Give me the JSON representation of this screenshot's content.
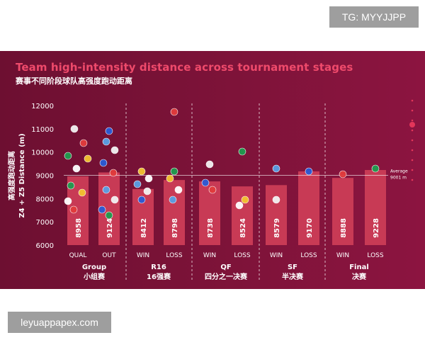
{
  "watermarks": {
    "top": "TG: MYYJJPP",
    "bottom": "leyuappapex.com"
  },
  "colors": {
    "background": "#7a1236",
    "bar": "#c83a55",
    "title": "#ef4a6b",
    "text": "#ffffff"
  },
  "chart_data": {
    "type": "bar",
    "title": "Team high-intensity distance across tournament stages",
    "subtitle": "赛事不同阶段球队高强度跑动距离",
    "ylabel": "Z4 + Z5 Distance (m)",
    "ylabel_cn": "高强度跑动距离",
    "ylim": [
      6000,
      12000
    ],
    "yticks": [
      "12000",
      "11000",
      "10000",
      "9000",
      "8000",
      "7000",
      "6000"
    ],
    "categories": [
      "QUAL",
      "OUT",
      "WIN",
      "LOSS",
      "WIN",
      "LOSS",
      "WIN",
      "LOSS",
      "WIN",
      "LOSS"
    ],
    "values": [
      8958,
      9124,
      8412,
      8798,
      8738,
      8524,
      8579,
      9170,
      8888,
      9228
    ],
    "value_labels": [
      "8958",
      "9124",
      "8412",
      "8798",
      "8738",
      "8524",
      "8579",
      "9170",
      "8888",
      "9228"
    ],
    "groups": [
      {
        "name": "Group",
        "name_cn": "小组赛"
      },
      {
        "name": "R16",
        "name_cn": "16强赛"
      },
      {
        "name": "QF",
        "name_cn": "四分之一决赛"
      },
      {
        "name": "SF",
        "name_cn": "半决赛"
      },
      {
        "name": "Final",
        "name_cn": "决赛"
      }
    ],
    "average": {
      "value": 9001,
      "label": "Average",
      "value_label": "9001 m"
    },
    "grid": false
  }
}
